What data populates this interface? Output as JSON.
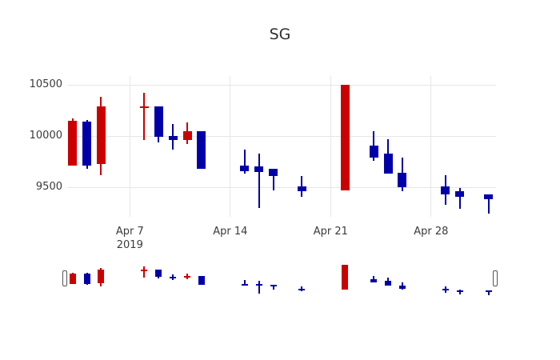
{
  "title": "SG",
  "colors": {
    "increasing": "#CC0000",
    "decreasing": "#0000AA",
    "grid": "#E6E6E6",
    "axis_text": "#3B3B3B",
    "title_text": "#2F2F2F",
    "background": "#FFFFFF",
    "handle_fill": "#FFFFFF",
    "handle_border": "#555555"
  },
  "y_axis": {
    "ticks": [
      {
        "label": "10500",
        "value": 10500
      },
      {
        "label": "10000",
        "value": 10000
      },
      {
        "label": "9500",
        "value": 9500
      }
    ]
  },
  "x_axis": {
    "ticks": [
      {
        "label": "Apr 7",
        "sublabel": "2019",
        "day": 7
      },
      {
        "label": "Apr 14",
        "sublabel": "",
        "day": 14
      },
      {
        "label": "Apr 21",
        "sublabel": "",
        "day": 21
      },
      {
        "label": "Apr 28",
        "sublabel": "",
        "day": 28
      }
    ]
  },
  "chart_data": {
    "type": "candlestick",
    "title": "SG",
    "xlabel": "",
    "ylabel": "",
    "x_range": [
      "2019-04-02",
      "2019-05-03"
    ],
    "y_ticks": [
      9500,
      10000,
      10500
    ],
    "grid": true,
    "rangeslider": true,
    "increasing_color": "#CC0000",
    "decreasing_color": "#0000AA",
    "candles": [
      {
        "date": "2019-04-03",
        "day": 3,
        "open": 9710,
        "high": 10170,
        "low": 9710,
        "close": 10150,
        "direction": "increasing"
      },
      {
        "date": "2019-04-04",
        "day": 4,
        "open": 10140,
        "high": 10160,
        "low": 9680,
        "close": 9710,
        "direction": "decreasing"
      },
      {
        "date": "2019-04-05",
        "day": 5,
        "open": 9730,
        "high": 10380,
        "low": 9620,
        "close": 10290,
        "direction": "increasing"
      },
      {
        "date": "2019-04-08",
        "day": 8,
        "open": 10270,
        "high": 10420,
        "low": 9960,
        "close": 10290,
        "direction": "increasing"
      },
      {
        "date": "2019-04-09",
        "day": 9,
        "open": 10290,
        "high": 10290,
        "low": 9940,
        "close": 9990,
        "direction": "decreasing"
      },
      {
        "date": "2019-04-10",
        "day": 10,
        "open": 10000,
        "high": 10120,
        "low": 9870,
        "close": 9960,
        "direction": "decreasing"
      },
      {
        "date": "2019-04-11",
        "day": 11,
        "open": 9960,
        "high": 10130,
        "low": 9920,
        "close": 10050,
        "direction": "increasing"
      },
      {
        "date": "2019-04-12",
        "day": 12,
        "open": 10050,
        "high": 10050,
        "low": 9680,
        "close": 9680,
        "direction": "decreasing"
      },
      {
        "date": "2019-04-15",
        "day": 15,
        "open": 9710,
        "high": 9870,
        "low": 9630,
        "close": 9660,
        "direction": "decreasing"
      },
      {
        "date": "2019-04-16",
        "day": 16,
        "open": 9700,
        "high": 9830,
        "low": 9300,
        "close": 9650,
        "direction": "decreasing"
      },
      {
        "date": "2019-04-17",
        "day": 17,
        "open": 9680,
        "high": 9680,
        "low": 9470,
        "close": 9610,
        "direction": "decreasing"
      },
      {
        "date": "2019-04-19",
        "day": 19,
        "open": 9510,
        "high": 9610,
        "low": 9410,
        "close": 9460,
        "direction": "decreasing"
      },
      {
        "date": "2019-04-22",
        "day": 22,
        "open": 9470,
        "high": 10500,
        "low": 9470,
        "close": 10500,
        "direction": "increasing"
      },
      {
        "date": "2019-04-24",
        "day": 24,
        "open": 9910,
        "high": 10050,
        "low": 9760,
        "close": 9790,
        "direction": "decreasing"
      },
      {
        "date": "2019-04-25",
        "day": 25,
        "open": 9830,
        "high": 9970,
        "low": 9630,
        "close": 9630,
        "direction": "decreasing"
      },
      {
        "date": "2019-04-26",
        "day": 26,
        "open": 9640,
        "high": 9790,
        "low": 9460,
        "close": 9500,
        "direction": "decreasing"
      },
      {
        "date": "2019-04-29",
        "day": 29,
        "open": 9510,
        "high": 9620,
        "low": 9330,
        "close": 9430,
        "direction": "decreasing"
      },
      {
        "date": "2019-04-30",
        "day": 30,
        "open": 9460,
        "high": 9490,
        "low": 9290,
        "close": 9410,
        "direction": "decreasing"
      },
      {
        "date": "2019-05-02",
        "day": 32,
        "open": 9430,
        "high": 9430,
        "low": 9240,
        "close": 9380,
        "direction": "decreasing"
      }
    ]
  },
  "rangeslider": {
    "present": true,
    "left_handle": "range-start",
    "right_handle": "range-end"
  }
}
